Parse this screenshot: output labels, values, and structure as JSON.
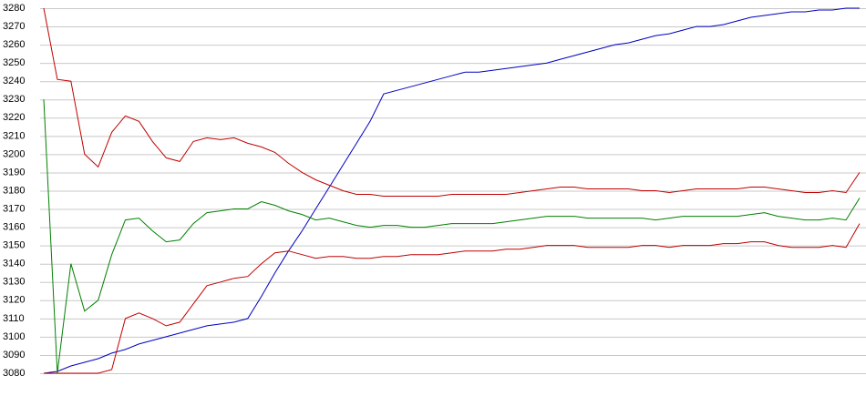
{
  "chart_data": {
    "type": "line",
    "ylim": [
      3080,
      3280
    ],
    "yticks": [
      3080,
      3090,
      3100,
      3110,
      3120,
      3130,
      3140,
      3150,
      3160,
      3170,
      3180,
      3190,
      3200,
      3210,
      3220,
      3230,
      3240,
      3250,
      3260,
      3270,
      3280
    ],
    "grid": true,
    "series": [
      {
        "color": "#0000c0",
        "values": [
          3080,
          3081,
          3084,
          3086,
          3088,
          3091,
          3093,
          3096,
          3098,
          3100,
          3102,
          3104,
          3106,
          3107,
          3108,
          3110,
          3122,
          3135,
          3147,
          3158,
          3170,
          3182,
          3194,
          3206,
          3218,
          3233,
          3235,
          3237,
          3239,
          3241,
          3243,
          3245,
          3245,
          3246,
          3247,
          3248,
          3249,
          3250,
          3252,
          3254,
          3256,
          3258,
          3260,
          3261,
          3263,
          3265,
          3266,
          3268,
          3270,
          3270,
          3271,
          3273,
          3275,
          3276,
          3277,
          3278,
          3278,
          3279,
          3279,
          3280,
          3280
        ]
      },
      {
        "color": "#c00000",
        "values": [
          3280,
          3241,
          3240,
          3200,
          3193,
          3212,
          3221,
          3218,
          3207,
          3198,
          3196,
          3207,
          3209,
          3208,
          3209,
          3206,
          3204,
          3201,
          3195,
          3190,
          3186,
          3183,
          3180,
          3178,
          3178,
          3177,
          3177,
          3177,
          3177,
          3177,
          3178,
          3178,
          3178,
          3178,
          3178,
          3179,
          3180,
          3181,
          3182,
          3182,
          3181,
          3181,
          3181,
          3181,
          3180,
          3180,
          3179,
          3180,
          3181,
          3181,
          3181,
          3181,
          3182,
          3182,
          3181,
          3180,
          3179,
          3179,
          3180,
          3179,
          3190
        ]
      },
      {
        "color": "#008000",
        "values": [
          3230,
          3080,
          3140,
          3114,
          3120,
          3145,
          3164,
          3165,
          3158,
          3152,
          3153,
          3162,
          3168,
          3169,
          3170,
          3170,
          3174,
          3172,
          3169,
          3167,
          3164,
          3165,
          3163,
          3161,
          3160,
          3161,
          3161,
          3160,
          3160,
          3161,
          3162,
          3162,
          3162,
          3162,
          3163,
          3164,
          3165,
          3166,
          3166,
          3166,
          3165,
          3165,
          3165,
          3165,
          3165,
          3164,
          3165,
          3166,
          3166,
          3166,
          3166,
          3166,
          3167,
          3168,
          3166,
          3165,
          3164,
          3164,
          3165,
          3164,
          3176
        ]
      },
      {
        "color": "#c00000",
        "values": [
          3080,
          3080,
          3080,
          3080,
          3080,
          3082,
          3110,
          3113,
          3110,
          3106,
          3108,
          3118,
          3128,
          3130,
          3132,
          3133,
          3140,
          3146,
          3147,
          3145,
          3143,
          3144,
          3144,
          3143,
          3143,
          3144,
          3144,
          3145,
          3145,
          3145,
          3146,
          3147,
          3147,
          3147,
          3148,
          3148,
          3149,
          3150,
          3150,
          3150,
          3149,
          3149,
          3149,
          3149,
          3150,
          3150,
          3149,
          3150,
          3150,
          3150,
          3151,
          3151,
          3152,
          3152,
          3150,
          3149,
          3149,
          3149,
          3150,
          3149,
          3162
        ]
      }
    ]
  }
}
